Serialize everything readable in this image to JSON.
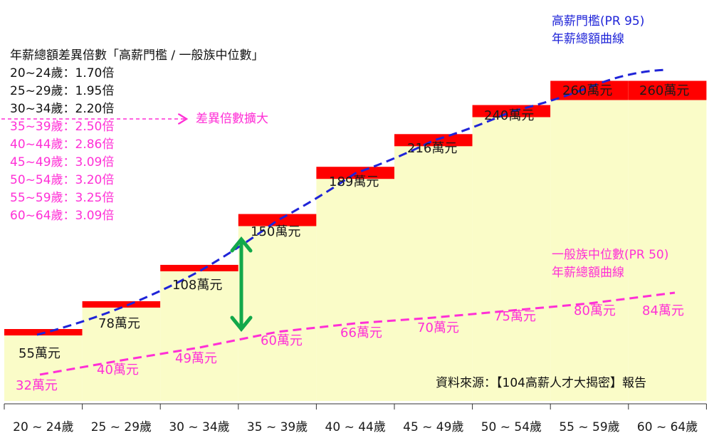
{
  "chart_data": {
    "type": "bar",
    "categories": [
      "20 ~ 24歲",
      "25 ~ 29歲",
      "30 ~ 34歲",
      "35 ~ 39歲",
      "40 ~ 44歲",
      "45 ~ 49歲",
      "50 ~ 54歲",
      "55 ~ 59歲",
      "60 ~ 64歲"
    ],
    "series": [
      {
        "name": "高薪門檻(PR 95) 年薪總額曲線",
        "values": [
          55,
          78,
          108,
          150,
          189,
          216,
          240,
          260,
          260
        ],
        "labels": [
          "55萬元",
          "78萬元",
          "108萬元",
          "150萬元",
          "189萬元",
          "216萬元",
          "240萬元",
          "260萬元",
          "260萬元"
        ],
        "color": "#ff0000"
      },
      {
        "name": "一般族中位數(PR 50) 年薪總額曲線",
        "values": [
          32,
          40,
          49,
          60,
          66,
          70,
          75,
          80,
          84
        ],
        "labels": [
          "32萬元",
          "40萬元",
          "49萬元",
          "60萬元",
          "66萬元",
          "70萬元",
          "75萬元",
          "80萬元",
          "84萬元"
        ],
        "color": "#ff2fd6"
      }
    ],
    "area_color": "#fafcc8",
    "high_curve_color": "#1f24d8",
    "median_curve_color": "#ff2fd6",
    "arrow_color": "#12a84a",
    "ratio_box": {
      "title": "年薪總額差異倍數「高薪門檻 / 一般族中位數」",
      "rows": [
        {
          "text": "20~24歲：1.70倍",
          "highlight": false
        },
        {
          "text": "25~29歲：1.95倍",
          "highlight": false
        },
        {
          "text": "30~34歲：2.20倍",
          "highlight": false
        },
        {
          "text": "35~39歲：2.50倍",
          "highlight": true
        },
        {
          "text": "40~44歲：2.86倍",
          "highlight": true
        },
        {
          "text": "45~49歲：3.09倍",
          "highlight": true
        },
        {
          "text": "50~54歲：3.20倍",
          "highlight": true
        },
        {
          "text": "55~59歲：3.25倍",
          "highlight": true
        },
        {
          "text": "60~64歲：3.09倍",
          "highlight": true
        }
      ],
      "annotation": "差異倍數擴大"
    },
    "high_legend": [
      "高薪門檻(PR 95)",
      "年薪總額曲線"
    ],
    "median_legend": [
      "一般族中位數(PR 50)",
      "年薪總額曲線"
    ],
    "source": "資料來源：【104高薪人才大揭密】報告"
  }
}
